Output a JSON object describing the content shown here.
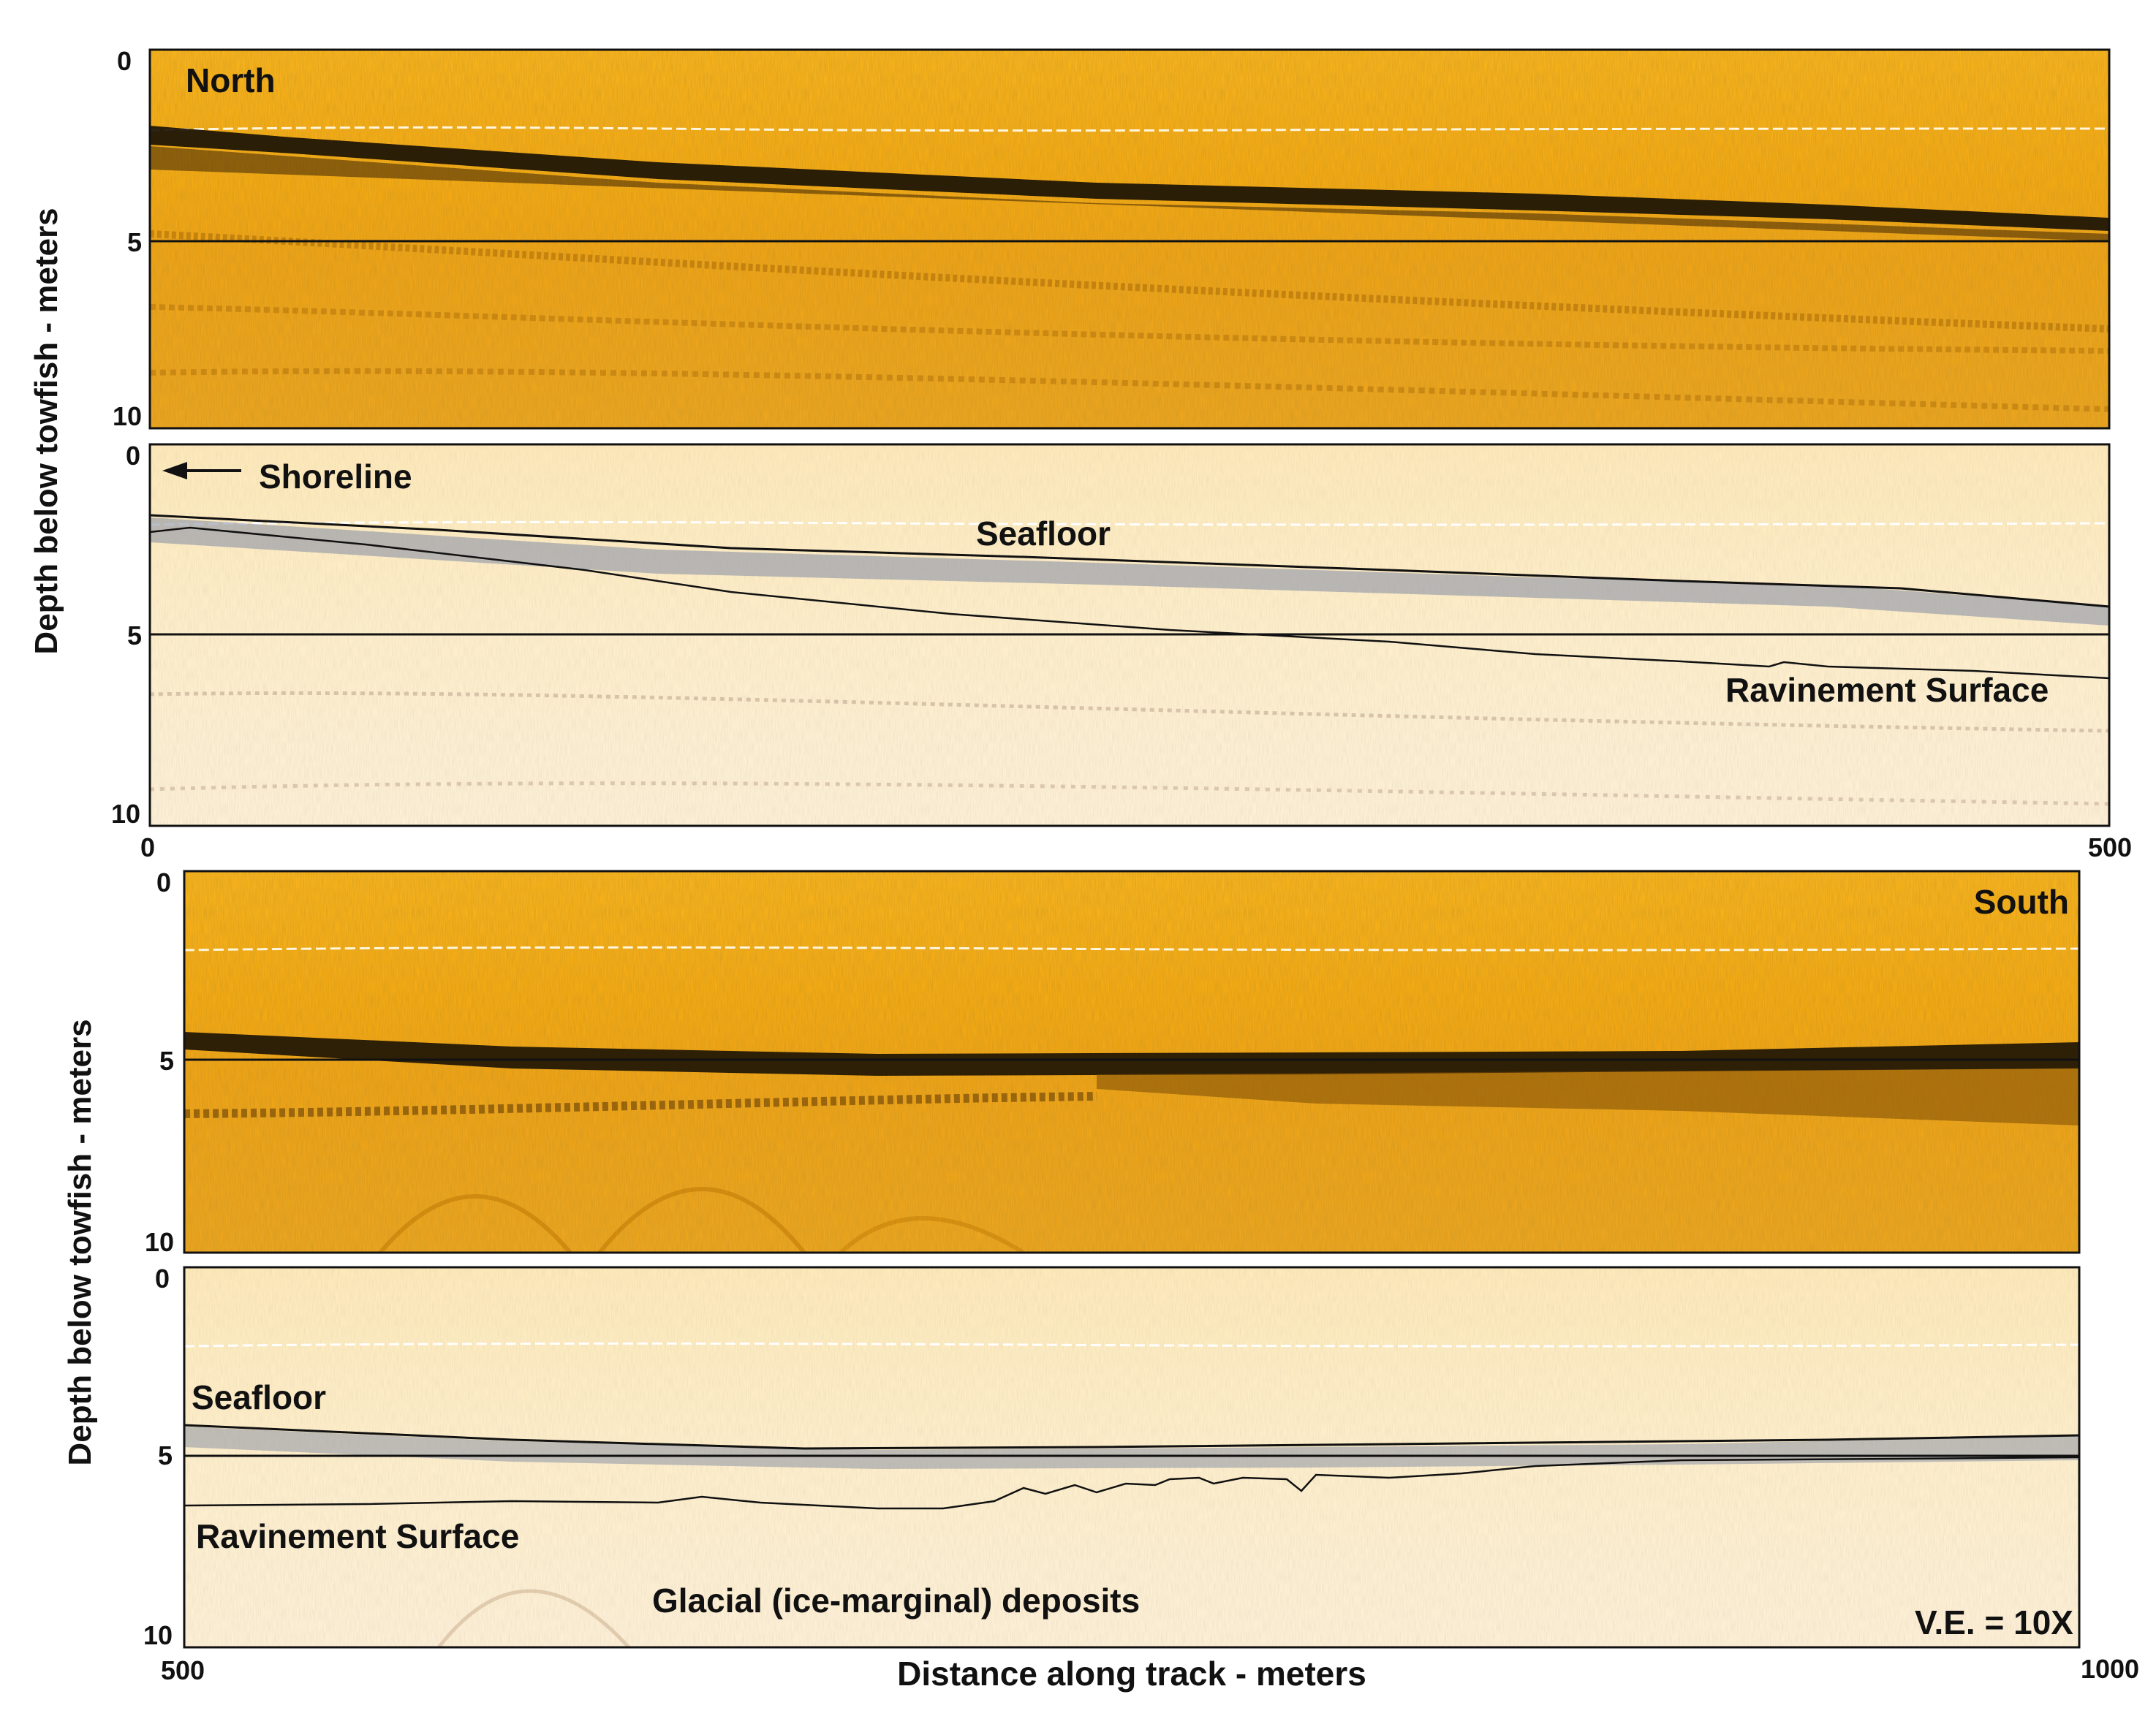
{
  "y_axis_label": "Depth below towfish - meters",
  "x_axis_label": "Distance along track - meters",
  "ve_label": "V.E. = 10X",
  "colors": {
    "raw_top": "#f7ae14",
    "raw_mid": "#f2a30e",
    "raw_deep": "#eea21a",
    "interp_bg": "#fdecc4",
    "interp_bg_deep": "#fcefd2",
    "reflector": "#1a1206",
    "shadow": "#8c93a6"
  },
  "depth_ticks": [
    "0",
    "5",
    "10"
  ],
  "top_section": {
    "x_ticks": [
      "0",
      "500"
    ],
    "raw_panel": {
      "label": "North"
    },
    "interp_panel": {
      "shoreline_label": "Shoreline",
      "seafloor_label": "Seafloor",
      "ravinement_label": "Ravinement Surface"
    }
  },
  "bottom_section": {
    "x_ticks": [
      "500",
      "1000"
    ],
    "raw_panel": {
      "label": "South"
    },
    "interp_panel": {
      "seafloor_label": "Seafloor",
      "ravinement_label": "Ravinement Surface",
      "glacial_label": "Glacial (ice-marginal) deposits"
    }
  }
}
